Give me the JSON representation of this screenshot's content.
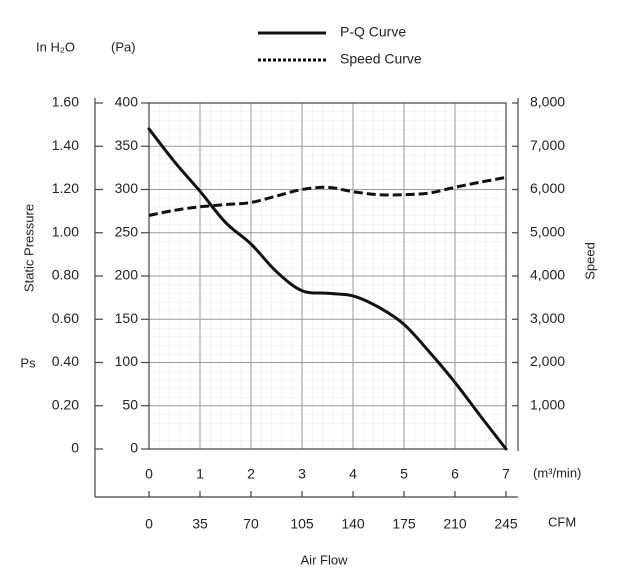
{
  "chart_data": {
    "type": "line",
    "legend": {
      "placement": "top-center",
      "entries": [
        {
          "label": "P-Q Curve",
          "style": "solid"
        },
        {
          "label": "Speed Curve",
          "style": "dotted"
        }
      ]
    },
    "x_axis": {
      "label": "Air Flow",
      "unit": "(m³/min)",
      "secondary_unit": "CFM",
      "range": [
        0,
        7
      ],
      "ticks": [
        "0",
        "1",
        "2",
        "3",
        "4",
        "5",
        "6",
        "7"
      ],
      "secondary_ticks": [
        "0",
        "35",
        "70",
        "105",
        "140",
        "175",
        "210",
        "245"
      ]
    },
    "y_left_axis": {
      "label": "Static Pressure",
      "symbol": "Ps",
      "unit": "(Pa)",
      "range": [
        0,
        400
      ],
      "ticks": [
        "0",
        "50",
        "100",
        "150",
        "200",
        "250",
        "300",
        "350",
        "400"
      ]
    },
    "y_inh2o_axis": {
      "unit": "In H₂O",
      "range": [
        0,
        1.6
      ],
      "ticks": [
        "0",
        "0.20",
        "0.40",
        "0.60",
        "0.80",
        "1.00",
        "1.20",
        "1.40",
        "1.60"
      ]
    },
    "y_right_axis": {
      "label": "Speed",
      "range": [
        0,
        8000
      ],
      "ticks": [
        "1,000",
        "2,000",
        "3,000",
        "4,000",
        "5,000",
        "6,000",
        "7,000",
        "8,000"
      ]
    },
    "grid": true,
    "series": [
      {
        "name": "P-Q Curve",
        "axis": "pressure_pa",
        "line": "solid",
        "x": [
          0,
          0.5,
          1,
          1.5,
          2,
          2.5,
          3,
          3.5,
          4,
          4.5,
          5,
          5.5,
          6,
          6.5,
          7
        ],
        "y": [
          370,
          332,
          298,
          262,
          237,
          205,
          183,
          180,
          177,
          164,
          144,
          112,
          77,
          38,
          0
        ]
      },
      {
        "name": "Speed Curve",
        "axis": "speed",
        "line": "dotted",
        "x": [
          0,
          0.5,
          1,
          1.5,
          2,
          2.5,
          3,
          3.5,
          4,
          4.5,
          5,
          5.5,
          6,
          6.5,
          7
        ],
        "y": [
          5400,
          5520,
          5600,
          5650,
          5700,
          5850,
          6000,
          6050,
          5950,
          5880,
          5880,
          5920,
          6050,
          6170,
          6280
        ]
      }
    ]
  }
}
